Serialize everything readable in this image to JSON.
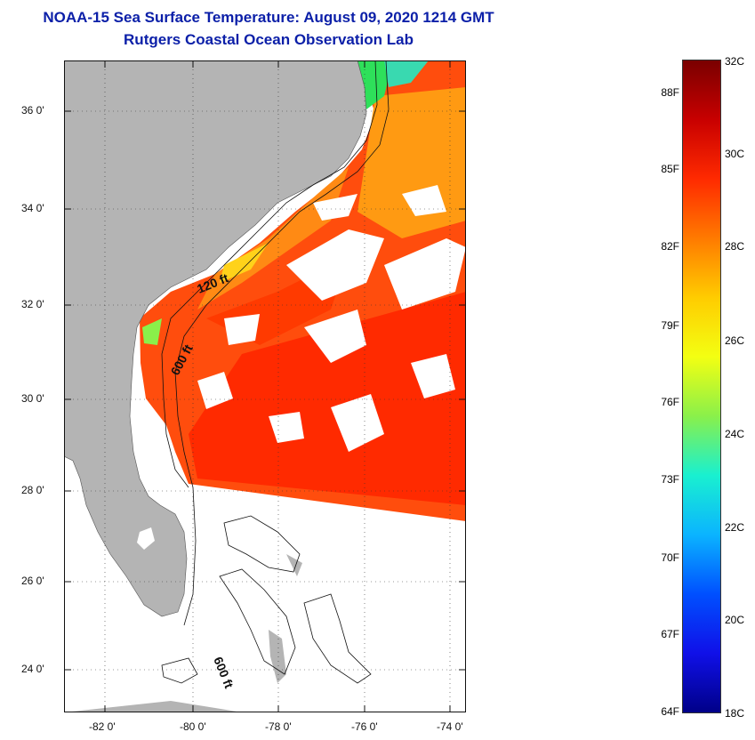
{
  "title": {
    "line1": "NOAA-15 Sea Surface Temperature:  August 09, 2020 1214 GMT",
    "line2": "Rutgers Coastal Ocean Observation Lab"
  },
  "map": {
    "lat_labels": [
      "36 0'",
      "34 0'",
      "32 0'",
      "30 0'",
      "28 0'",
      "26 0'",
      "24 0'"
    ],
    "lon_labels": [
      "-82 0'",
      "-80 0'",
      "-78 0'",
      "-76 0'",
      "-74 0'"
    ],
    "contour_labels": [
      "120 ft",
      "600 ft",
      "600 ft"
    ],
    "land_color": "#b4b4b4",
    "sst_colors": [
      "#ff2a00",
      "#ff4d0d",
      "#ff6e1a",
      "#ff9a12",
      "#ffd21a",
      "#2ee05a"
    ]
  },
  "colorbar": {
    "fahrenheit": [
      "88F",
      "85F",
      "82F",
      "79F",
      "76F",
      "73F",
      "70F",
      "67F",
      "64F"
    ],
    "celsius": [
      "32C",
      "30C",
      "28C",
      "26C",
      "24C",
      "22C",
      "20C",
      "18C"
    ],
    "stops": [
      "#7a0000",
      "#c80000",
      "#ff2a00",
      "#ff7a00",
      "#ffcc00",
      "#f3ff12",
      "#8af04a",
      "#19f0d0",
      "#0bb4ff",
      "#0050ff",
      "#1010e8",
      "#000088"
    ]
  }
}
